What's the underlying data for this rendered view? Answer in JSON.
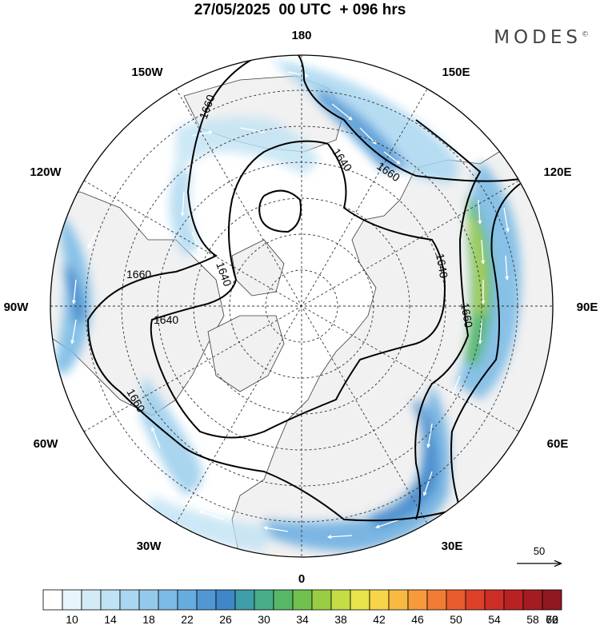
{
  "header": {
    "title": "27/05/2025  00 UTC  + 096 hrs",
    "brand": "MODES",
    "brand_mark": "©"
  },
  "map": {
    "longitude_labels": {
      "top": "180",
      "top_left": "150W",
      "top_right": "150E",
      "upper_left": "120W",
      "upper_right": "120E",
      "left": "90W",
      "right": "90E",
      "lower_left": "60W",
      "lower_right": "60E",
      "bottom_left": "30W",
      "bottom_right": "30E",
      "bottom": "0"
    },
    "contour_labels": [
      "1660",
      "1640",
      "1660",
      "1660",
      "1640",
      "1640",
      "1660",
      "1640",
      "1660"
    ],
    "colors": {
      "land": "#f2f2f2",
      "ocean": "#ffffff",
      "contour": "#000000",
      "coast": "#333333",
      "grid": "#333333"
    }
  },
  "vector_key": {
    "label": "50"
  },
  "colorbar": {
    "tick_labels": [
      "10",
      "14",
      "18",
      "22",
      "26",
      "30",
      "34",
      "38",
      "42",
      "46",
      "50",
      "54",
      "58",
      "62",
      "66",
      "70"
    ],
    "colors": [
      "#ffffff",
      "#e8f4fb",
      "#d3ebf7",
      "#bfe2f4",
      "#a9d6f0",
      "#93caeb",
      "#7cbbe5",
      "#66acdf",
      "#5097d4",
      "#3f86c9",
      "#3f9da8",
      "#48ad88",
      "#56b867",
      "#6fc04f",
      "#9acd45",
      "#c4dc45",
      "#e8e44a",
      "#f7d44a",
      "#f8b943",
      "#f79a3c",
      "#f27b35",
      "#e95c2e",
      "#dd4128",
      "#cd2e25",
      "#b92224",
      "#a41b22",
      "#8f1820"
    ]
  }
}
